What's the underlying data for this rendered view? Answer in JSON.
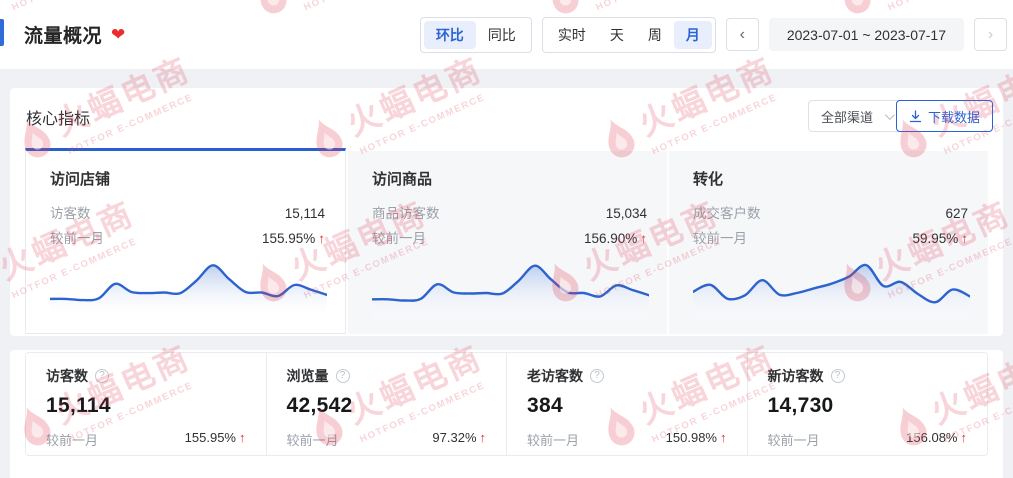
{
  "page": {
    "title": "流量概况"
  },
  "header": {
    "compare_tabs": [
      {
        "label": "环比",
        "active": true
      },
      {
        "label": "同比",
        "active": false
      }
    ],
    "period_tabs": [
      {
        "label": "实时",
        "active": false
      },
      {
        "label": "天",
        "active": false
      },
      {
        "label": "周",
        "active": false
      },
      {
        "label": "月",
        "active": true
      }
    ],
    "prev_label": "‹",
    "next_label": "›",
    "date_range": "2023-07-01 ~ 2023-07-17"
  },
  "panel": {
    "title": "核心指标",
    "channel_select_value": "全部渠道",
    "download_label": "下载数据"
  },
  "cards": [
    {
      "title": "访问店铺",
      "metric_label": "访客数",
      "metric_value": "15,114",
      "compare_label": "较前一月",
      "compare_value": "155.95%",
      "trend": "up",
      "selected": true
    },
    {
      "title": "访问商品",
      "metric_label": "商品访客数",
      "metric_value": "15,034",
      "compare_label": "较前一月",
      "compare_value": "156.90%",
      "trend": "up",
      "selected": false
    },
    {
      "title": "转化",
      "metric_label": "成交客户数",
      "metric_value": "627",
      "compare_label": "较前一月",
      "compare_value": "59.95%",
      "trend": "up",
      "selected": false
    }
  ],
  "stats": [
    {
      "label": "访客数",
      "value": "15,114",
      "compare_label": "较前一月",
      "compare_value": "155.95%",
      "trend": "up"
    },
    {
      "label": "浏览量",
      "value": "42,542",
      "compare_label": "较前一月",
      "compare_value": "97.32%",
      "trend": "up"
    },
    {
      "label": "老访客数",
      "value": "384",
      "compare_label": "较前一月",
      "compare_value": "150.98%",
      "trend": "up"
    },
    {
      "label": "新访客数",
      "value": "14,730",
      "compare_label": "较前一月",
      "compare_value": "156.08%",
      "trend": "up"
    }
  ],
  "arrow_up": "↑",
  "help_glyph": "?",
  "watermark": {
    "text": "火蝠电商",
    "subtext": "HOTFOR E-COMMERCE"
  },
  "colors": {
    "accent_blue": "#2a63d6",
    "spark_line": "#2c63cf",
    "up_red": "#e62e2e",
    "heart_red": "#ee2b2b",
    "watermark_pink": "rgba(221,64,86,0.22)",
    "page_bg": "#eff1f4",
    "card_bg": "#f6f7f9"
  },
  "chart_data": [
    {
      "type": "area",
      "title": "访问店铺 访客数趋势 (2023-07-01 ~ 2023-07-17)",
      "values": [
        26,
        26,
        24,
        27,
        52,
        38,
        36,
        37,
        36,
        58,
        84,
        60,
        38,
        37,
        31,
        50,
        42,
        33
      ]
    },
    {
      "type": "area",
      "title": "访问商品 商品访客数趋势 (2023-07-01 ~ 2023-07-17)",
      "values": [
        27,
        27,
        25,
        28,
        53,
        39,
        37,
        38,
        37,
        59,
        85,
        61,
        39,
        38,
        32,
        51,
        43,
        34
      ]
    },
    {
      "type": "area",
      "title": "转化 成交客户数趋势 (2023-07-01 ~ 2023-07-17)",
      "values": [
        40,
        52,
        28,
        34,
        60,
        35,
        38,
        46,
        54,
        66,
        86,
        50,
        57,
        36,
        22,
        44,
        32
      ]
    }
  ]
}
